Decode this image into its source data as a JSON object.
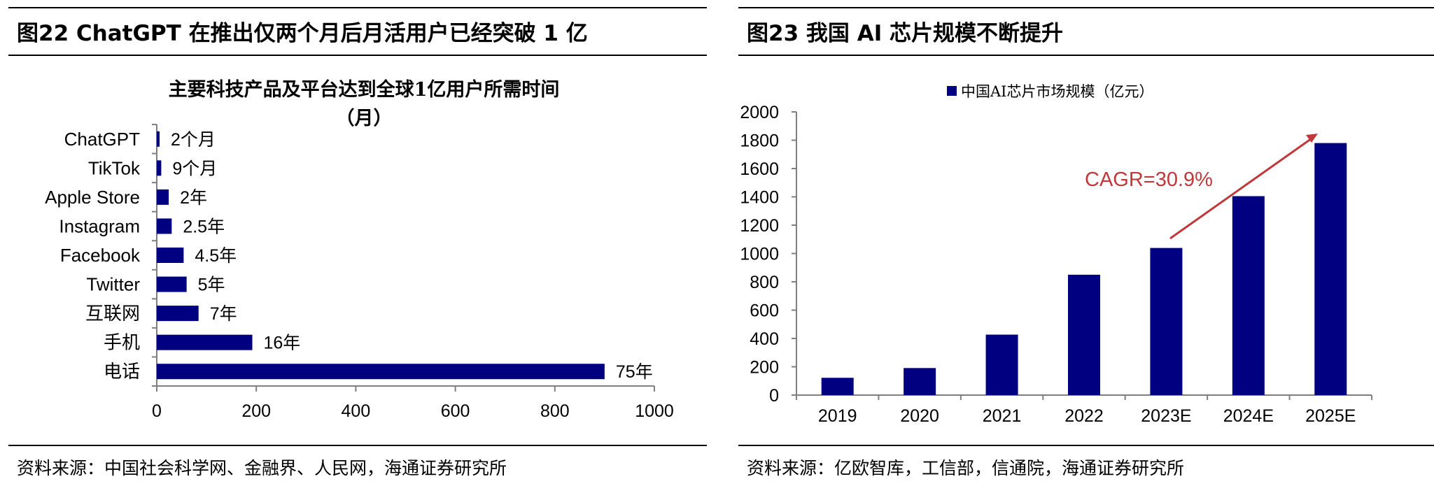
{
  "left": {
    "figure_title": "图22 ChatGPT 在推出仅两个月后月活用户已经突破 1 亿",
    "source": "资料来源：中国社会科学网、金融界、人民网，海通证券研究所"
  },
  "right": {
    "figure_title": "图23 我国 AI 芯片规模不断提升",
    "source": "资料来源：亿欧智库，工信部，信通院，海通证券研究所"
  },
  "colors": {
    "bar": "#000080",
    "arrow": "#C0383A",
    "axis": "#7f7f7f"
  },
  "chart_data": [
    {
      "type": "bar",
      "orientation": "horizontal",
      "title": "主要科技产品及平台达到全球1亿用户所需时间（月）",
      "title_lines": [
        "主要科技产品及平台达到全球1亿用户所需时间",
        "（月）"
      ],
      "categories": [
        "ChatGPT",
        "TikTok",
        "Apple Store",
        "Instagram",
        "Facebook",
        "Twitter",
        "互联网",
        "手机",
        "电话"
      ],
      "values": [
        2,
        9,
        24,
        30,
        54,
        60,
        84,
        192,
        900
      ],
      "data_labels": [
        "2个月",
        "9个月",
        "2年",
        "2.5年",
        "4.5年",
        "5年",
        "7年",
        "16年",
        "75年"
      ],
      "xlim": [
        0,
        1000
      ],
      "xticks": [
        "0",
        "200",
        "400",
        "600",
        "800",
        "1000"
      ],
      "grid": false,
      "legend": "none"
    },
    {
      "type": "bar",
      "orientation": "vertical",
      "categories": [
        "2019",
        "2020",
        "2021",
        "2022",
        "2023E",
        "2024E",
        "2025E"
      ],
      "series": [
        {
          "name": "中国AI芯片市场规模（亿元）",
          "values": [
            122,
            191,
            427,
            850,
            1039,
            1405,
            1780
          ]
        }
      ],
      "ylim": [
        0,
        2000
      ],
      "yticks": [
        "0",
        "200",
        "400",
        "600",
        "800",
        "1000",
        "1200",
        "1400",
        "1600",
        "1800",
        "2000"
      ],
      "annotation": "CAGR=30.9%",
      "grid": false,
      "legend": "top-center"
    }
  ]
}
